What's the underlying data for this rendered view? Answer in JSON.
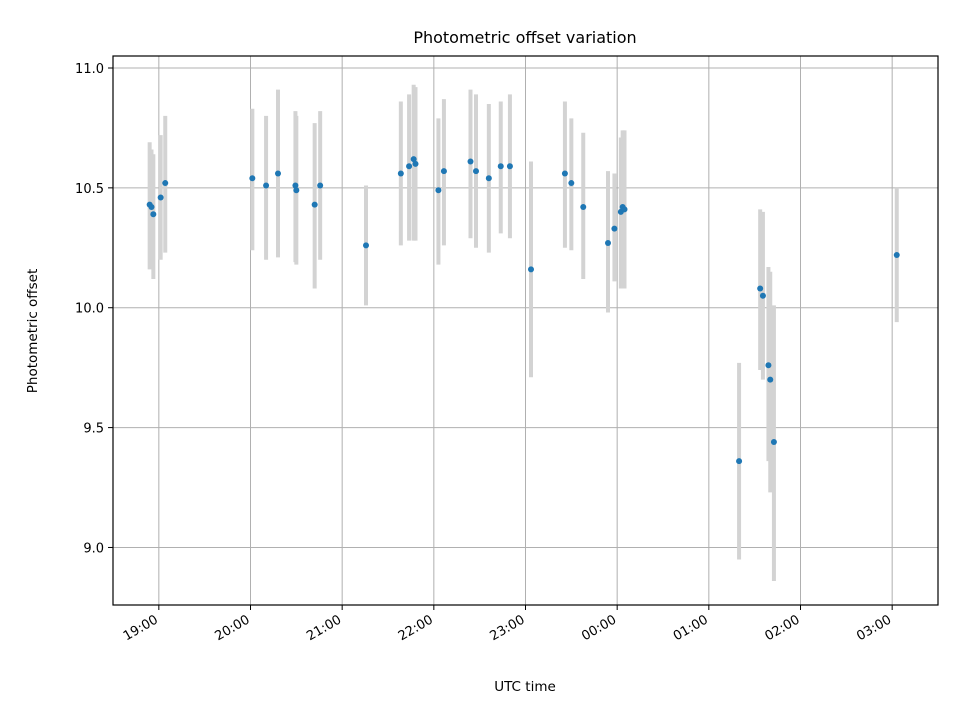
{
  "chart_data": {
    "type": "scatter",
    "title": "Photometric offset variation",
    "xlabel": "UTC time",
    "ylabel": "Photometric offset",
    "x_unit": "hours (UTC, relative to 19:00 of first night)",
    "xlim": [
      -0.5,
      8.5
    ],
    "ylim": [
      8.76,
      11.05
    ],
    "grid": true,
    "point_color": "#1f77b4",
    "errorbar_color": "#d3d3d3",
    "x_ticks": [
      {
        "value": 0,
        "label": "19:00"
      },
      {
        "value": 1,
        "label": "20:00"
      },
      {
        "value": 2,
        "label": "21:00"
      },
      {
        "value": 3,
        "label": "22:00"
      },
      {
        "value": 4,
        "label": "23:00"
      },
      {
        "value": 5,
        "label": "00:00"
      },
      {
        "value": 6,
        "label": "01:00"
      },
      {
        "value": 7,
        "label": "02:00"
      },
      {
        "value": 8,
        "label": "03:00"
      }
    ],
    "y_ticks": [
      {
        "value": 9.0,
        "label": "9.0"
      },
      {
        "value": 9.5,
        "label": "9.5"
      },
      {
        "value": 10.0,
        "label": "10.0"
      },
      {
        "value": 10.5,
        "label": "10.5"
      },
      {
        "value": 11.0,
        "label": "11.0"
      }
    ],
    "points": [
      {
        "x": -0.1,
        "y": 10.43,
        "lo": 10.16,
        "hi": 10.69
      },
      {
        "x": -0.08,
        "y": 10.42,
        "lo": 10.17,
        "hi": 10.66
      },
      {
        "x": -0.06,
        "y": 10.39,
        "lo": 10.12,
        "hi": 10.64
      },
      {
        "x": 0.02,
        "y": 10.46,
        "lo": 10.2,
        "hi": 10.72
      },
      {
        "x": 0.07,
        "y": 10.52,
        "lo": 10.23,
        "hi": 10.8
      },
      {
        "x": 1.02,
        "y": 10.54,
        "lo": 10.24,
        "hi": 10.83
      },
      {
        "x": 1.17,
        "y": 10.51,
        "lo": 10.2,
        "hi": 10.8
      },
      {
        "x": 1.3,
        "y": 10.56,
        "lo": 10.21,
        "hi": 10.91
      },
      {
        "x": 1.49,
        "y": 10.51,
        "lo": 10.19,
        "hi": 10.82
      },
      {
        "x": 1.5,
        "y": 10.49,
        "lo": 10.18,
        "hi": 10.8
      },
      {
        "x": 1.7,
        "y": 10.43,
        "lo": 10.08,
        "hi": 10.77
      },
      {
        "x": 1.76,
        "y": 10.51,
        "lo": 10.2,
        "hi": 10.82
      },
      {
        "x": 2.26,
        "y": 10.26,
        "lo": 10.01,
        "hi": 10.51
      },
      {
        "x": 2.64,
        "y": 10.56,
        "lo": 10.26,
        "hi": 10.86
      },
      {
        "x": 2.73,
        "y": 10.59,
        "lo": 10.28,
        "hi": 10.89
      },
      {
        "x": 2.78,
        "y": 10.62,
        "lo": 10.28,
        "hi": 10.93
      },
      {
        "x": 2.8,
        "y": 10.6,
        "lo": 10.28,
        "hi": 10.92
      },
      {
        "x": 3.05,
        "y": 10.49,
        "lo": 10.18,
        "hi": 10.79
      },
      {
        "x": 3.11,
        "y": 10.57,
        "lo": 10.26,
        "hi": 10.87
      },
      {
        "x": 3.4,
        "y": 10.61,
        "lo": 10.29,
        "hi": 10.91
      },
      {
        "x": 3.46,
        "y": 10.57,
        "lo": 10.25,
        "hi": 10.89
      },
      {
        "x": 3.6,
        "y": 10.54,
        "lo": 10.23,
        "hi": 10.85
      },
      {
        "x": 3.73,
        "y": 10.59,
        "lo": 10.31,
        "hi": 10.86
      },
      {
        "x": 3.83,
        "y": 10.59,
        "lo": 10.29,
        "hi": 10.89
      },
      {
        "x": 4.06,
        "y": 10.16,
        "lo": 9.71,
        "hi": 10.61
      },
      {
        "x": 4.43,
        "y": 10.56,
        "lo": 10.25,
        "hi": 10.86
      },
      {
        "x": 4.5,
        "y": 10.52,
        "lo": 10.24,
        "hi": 10.79
      },
      {
        "x": 4.63,
        "y": 10.42,
        "lo": 10.12,
        "hi": 10.73
      },
      {
        "x": 4.9,
        "y": 10.27,
        "lo": 9.98,
        "hi": 10.57
      },
      {
        "x": 4.97,
        "y": 10.33,
        "lo": 10.11,
        "hi": 10.56
      },
      {
        "x": 5.04,
        "y": 10.4,
        "lo": 10.08,
        "hi": 10.71
      },
      {
        "x": 5.06,
        "y": 10.42,
        "lo": 10.08,
        "hi": 10.74
      },
      {
        "x": 5.08,
        "y": 10.41,
        "lo": 10.08,
        "hi": 10.74
      },
      {
        "x": 6.33,
        "y": 9.36,
        "lo": 8.95,
        "hi": 9.77
      },
      {
        "x": 6.56,
        "y": 10.08,
        "lo": 9.74,
        "hi": 10.41
      },
      {
        "x": 6.59,
        "y": 10.05,
        "lo": 9.7,
        "hi": 10.4
      },
      {
        "x": 6.65,
        "y": 9.76,
        "lo": 9.36,
        "hi": 10.17
      },
      {
        "x": 6.67,
        "y": 9.7,
        "lo": 9.23,
        "hi": 10.15
      },
      {
        "x": 6.71,
        "y": 9.44,
        "lo": 8.86,
        "hi": 10.01
      },
      {
        "x": 8.05,
        "y": 10.22,
        "lo": 9.94,
        "hi": 10.5
      }
    ]
  }
}
